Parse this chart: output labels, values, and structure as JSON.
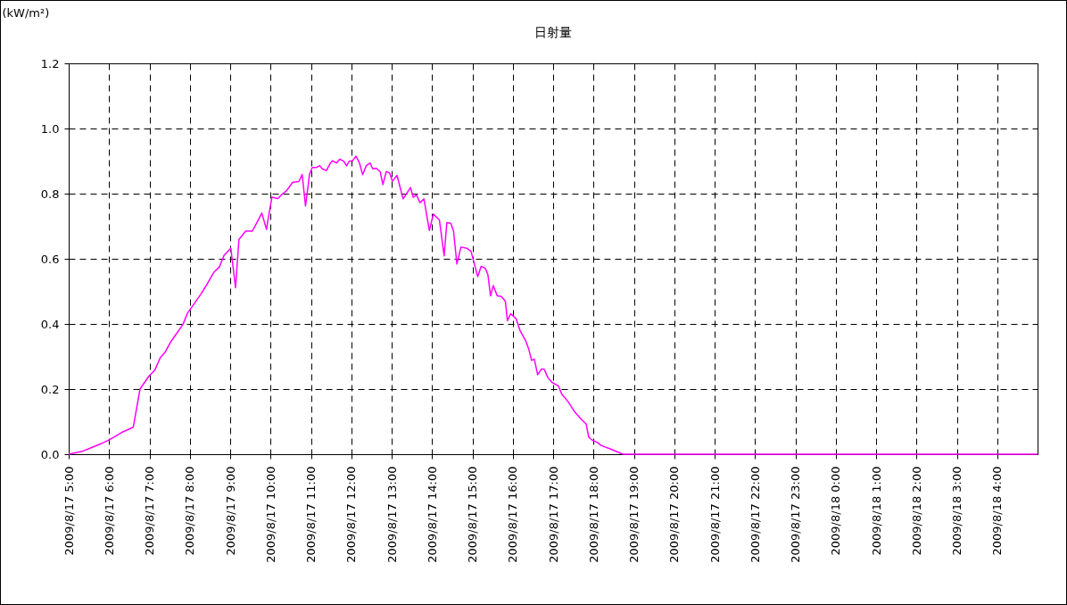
{
  "chart_data": {
    "type": "line",
    "title": "日射量",
    "ylabel": "(kW/m²)",
    "xlim": [
      "2009-08-17T05:00",
      "2009-08-18T05:00"
    ],
    "xticks": [
      {
        "value": "2009-08-17T05:00",
        "label": "2009/8/17 5:00"
      },
      {
        "value": "2009-08-17T06:00",
        "label": "2009/8/17 6:00"
      },
      {
        "value": "2009-08-17T07:00",
        "label": "2009/8/17 7:00"
      },
      {
        "value": "2009-08-17T08:00",
        "label": "2009/8/17 8:00"
      },
      {
        "value": "2009-08-17T09:00",
        "label": "2009/8/17 9:00"
      },
      {
        "value": "2009-08-17T10:00",
        "label": "2009/8/17 10:00"
      },
      {
        "value": "2009-08-17T11:00",
        "label": "2009/8/17 11:00"
      },
      {
        "value": "2009-08-17T12:00",
        "label": "2009/8/17 12:00"
      },
      {
        "value": "2009-08-17T13:00",
        "label": "2009/8/17 13:00"
      },
      {
        "value": "2009-08-17T14:00",
        "label": "2009/8/17 14:00"
      },
      {
        "value": "2009-08-17T15:00",
        "label": "2009/8/17 15:00"
      },
      {
        "value": "2009-08-17T16:00",
        "label": "2009/8/17 16:00"
      },
      {
        "value": "2009-08-17T17:00",
        "label": "2009/8/17 17:00"
      },
      {
        "value": "2009-08-17T18:00",
        "label": "2009/8/17 18:00"
      },
      {
        "value": "2009-08-17T19:00",
        "label": "2009/8/17 19:00"
      },
      {
        "value": "2009-08-17T20:00",
        "label": "2009/8/17 20:00"
      },
      {
        "value": "2009-08-17T21:00",
        "label": "2009/8/17 21:00"
      },
      {
        "value": "2009-08-17T22:00",
        "label": "2009/8/17 22:00"
      },
      {
        "value": "2009-08-17T23:00",
        "label": "2009/8/17 23:00"
      },
      {
        "value": "2009-08-18T00:00",
        "label": "2009/8/18 0:00"
      },
      {
        "value": "2009-08-18T01:00",
        "label": "2009/8/18 1:00"
      },
      {
        "value": "2009-08-18T02:00",
        "label": "2009/8/18 2:00"
      },
      {
        "value": "2009-08-18T03:00",
        "label": "2009/8/18 3:00"
      },
      {
        "value": "2009-08-18T04:00",
        "label": "2009/8/18 4:00"
      }
    ],
    "ylim": [
      0,
      1.2
    ],
    "yticks": [
      {
        "value": 0,
        "label": "0.0"
      },
      {
        "value": 0.2,
        "label": "0.2"
      },
      {
        "value": 0.4,
        "label": "0.4"
      },
      {
        "value": 0.6,
        "label": "0.6"
      },
      {
        "value": 0.8,
        "label": "0.8"
      },
      {
        "value": 1,
        "label": "1.0"
      },
      {
        "value": 1.2,
        "label": "1.2"
      }
    ],
    "grid": true,
    "line_style": "solid",
    "x": [
      "2009-08-17T05:00",
      "2009-08-17T05:19",
      "2009-08-17T05:31",
      "2009-08-17T05:48",
      "2009-08-17T06:01",
      "2009-08-17T06:19",
      "2009-08-17T06:36",
      "2009-08-17T06:46",
      "2009-08-17T06:59",
      "2009-08-17T07:08",
      "2009-08-17T07:16",
      "2009-08-17T07:23",
      "2009-08-17T07:32",
      "2009-08-17T07:50",
      "2009-08-17T07:56",
      "2009-08-17T08:16",
      "2009-08-17T08:23",
      "2009-08-17T08:36",
      "2009-08-17T08:44",
      "2009-08-17T08:51",
      "2009-08-17T09:01",
      "2009-08-17T09:08",
      "2009-08-17T09:13",
      "2009-08-17T09:23",
      "2009-08-17T09:33",
      "2009-08-17T09:42",
      "2009-08-17T09:47",
      "2009-08-17T09:54",
      "2009-08-17T09:56",
      "2009-08-17T10:02",
      "2009-08-17T10:11",
      "2009-08-17T10:18",
      "2009-08-17T10:23",
      "2009-08-17T10:33",
      "2009-08-17T10:42",
      "2009-08-17T10:47",
      "2009-08-17T10:52",
      "2009-08-17T10:58",
      "2009-08-17T11:02",
      "2009-08-17T11:08",
      "2009-08-17T11:13",
      "2009-08-17T11:17",
      "2009-08-17T11:23",
      "2009-08-17T11:29",
      "2009-08-17T11:32",
      "2009-08-17T11:38",
      "2009-08-17T11:43",
      "2009-08-17T11:49",
      "2009-08-17T11:53",
      "2009-08-17T11:57",
      "2009-08-17T12:02",
      "2009-08-17T12:07",
      "2009-08-17T12:12",
      "2009-08-17T12:17",
      "2009-08-17T12:22",
      "2009-08-17T12:28",
      "2009-08-17T12:32",
      "2009-08-17T12:37",
      "2009-08-17T12:43",
      "2009-08-17T12:47",
      "2009-08-17T12:52",
      "2009-08-17T12:57",
      "2009-08-17T13:01",
      "2009-08-17T13:08",
      "2009-08-17T13:17",
      "2009-08-17T13:21",
      "2009-08-17T13:28",
      "2009-08-17T13:32",
      "2009-08-17T13:37",
      "2009-08-17T13:42",
      "2009-08-17T13:48",
      "2009-08-17T13:56",
      "2009-08-17T14:02",
      "2009-08-17T14:11",
      "2009-08-17T14:18",
      "2009-08-17T14:22",
      "2009-08-17T14:28",
      "2009-08-17T14:32",
      "2009-08-17T14:37",
      "2009-08-17T14:43",
      "2009-08-17T14:52",
      "2009-08-17T14:58",
      "2009-08-17T15:08",
      "2009-08-17T15:13",
      "2009-08-17T15:19",
      "2009-08-17T15:23",
      "2009-08-17T15:27",
      "2009-08-17T15:31",
      "2009-08-17T15:37",
      "2009-08-17T15:43",
      "2009-08-17T15:49",
      "2009-08-17T15:52",
      "2009-08-17T15:57",
      "2009-08-17T16:05",
      "2009-08-17T16:11",
      "2009-08-17T16:19",
      "2009-08-17T16:24",
      "2009-08-17T16:28",
      "2009-08-17T16:32",
      "2009-08-17T16:37",
      "2009-08-17T16:43",
      "2009-08-17T16:47",
      "2009-08-17T16:52",
      "2009-08-17T16:58",
      "2009-08-17T17:08",
      "2009-08-17T17:13",
      "2009-08-17T17:22",
      "2009-08-17T17:32",
      "2009-08-17T17:42",
      "2009-08-17T17:49",
      "2009-08-17T17:53",
      "2009-08-17T17:58",
      "2009-08-17T18:06",
      "2009-08-17T18:11",
      "2009-08-17T18:24",
      "2009-08-17T18:31",
      "2009-08-17T18:41",
      "2009-08-17T18:45",
      "2009-08-18T05:00"
    ],
    "series": [
      {
        "color": "#ff00ff",
        "values": [
          0,
          0.008,
          0.018,
          0.032,
          0.045,
          0.067,
          0.083,
          0.2,
          0.239,
          0.258,
          0.296,
          0.312,
          0.346,
          0.399,
          0.431,
          0.49,
          0.513,
          0.559,
          0.575,
          0.611,
          0.632,
          0.511,
          0.659,
          0.685,
          0.685,
          0.72,
          0.74,
          0.69,
          0.717,
          0.789,
          0.785,
          0.8,
          0.807,
          0.835,
          0.837,
          0.859,
          0.762,
          0.86,
          0.88,
          0.88,
          0.886,
          0.876,
          0.871,
          0.894,
          0.901,
          0.894,
          0.906,
          0.899,
          0.885,
          0.9,
          0.901,
          0.915,
          0.895,
          0.858,
          0.885,
          0.894,
          0.876,
          0.878,
          0.867,
          0.828,
          0.868,
          0.863,
          0.838,
          0.856,
          0.784,
          0.796,
          0.819,
          0.789,
          0.796,
          0.772,
          0.784,
          0.687,
          0.737,
          0.719,
          0.609,
          0.711,
          0.709,
          0.685,
          0.584,
          0.636,
          0.632,
          0.623,
          0.545,
          0.577,
          0.571,
          0.552,
          0.486,
          0.518,
          0.486,
          0.484,
          0.47,
          0.41,
          0.431,
          0.416,
          0.379,
          0.349,
          0.321,
          0.288,
          0.292,
          0.244,
          0.262,
          0.26,
          0.236,
          0.221,
          0.209,
          0.184,
          0.162,
          0.13,
          0.107,
          0.093,
          0.052,
          0.043,
          0.036,
          0.027,
          0.017,
          0.011,
          0.002,
          0,
          0
        ]
      }
    ]
  }
}
